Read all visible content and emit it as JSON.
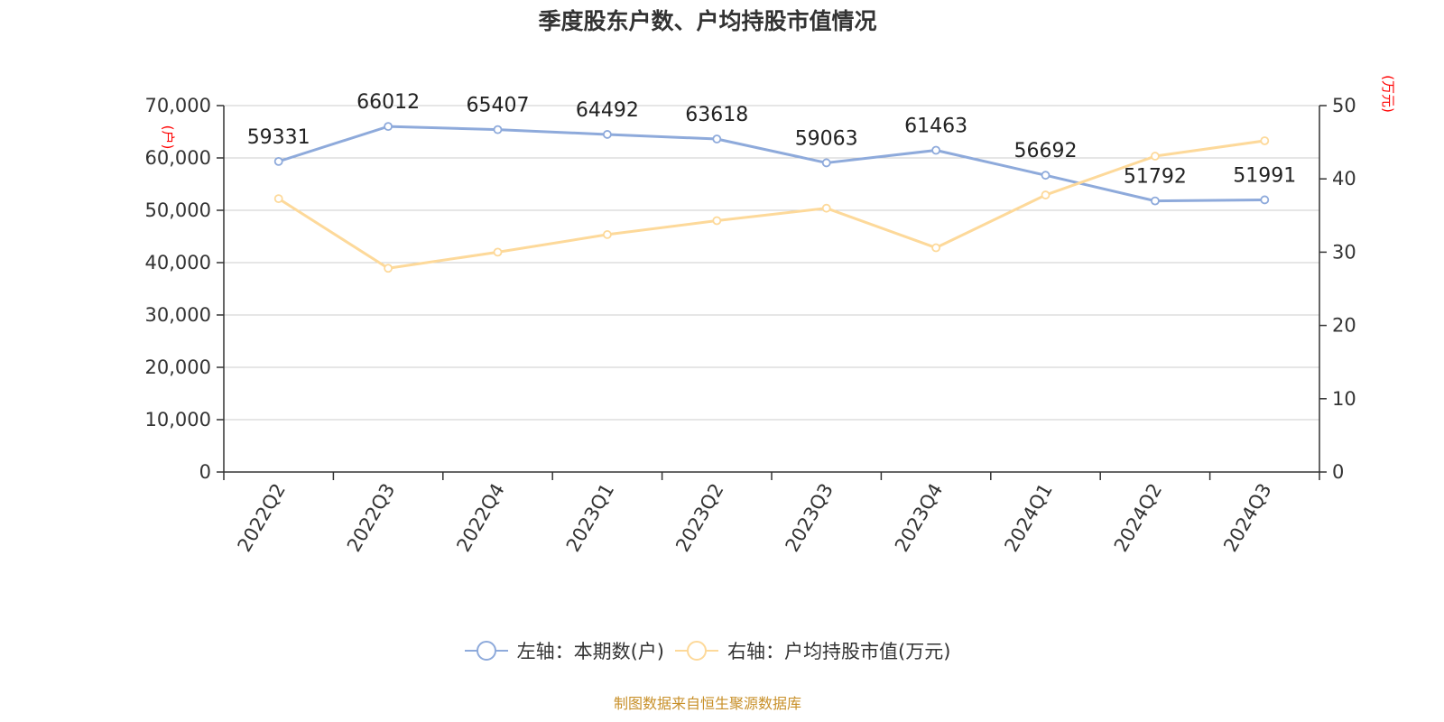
{
  "chart_data": {
    "type": "line",
    "title": "季度股东户数、户均持股市值情况",
    "categories": [
      "2022Q2",
      "2022Q3",
      "2022Q4",
      "2023Q1",
      "2023Q2",
      "2023Q3",
      "2023Q4",
      "2024Q1",
      "2024Q2",
      "2024Q3"
    ],
    "series": [
      {
        "name": "左轴：本期数(户)",
        "axis": "left",
        "color": "#8eaadb",
        "values": [
          59331,
          66012,
          65407,
          64492,
          63618,
          59063,
          61463,
          56692,
          51792,
          51991
        ],
        "labels": [
          "59331",
          "66012",
          "65407",
          "64492",
          "63618",
          "59063",
          "61463",
          "56692",
          "51792",
          "51991"
        ]
      },
      {
        "name": "右轴：户均持股市值(万元)",
        "axis": "right",
        "color": "#fdd99a",
        "values": [
          37.3,
          27.8,
          30.0,
          32.4,
          34.3,
          36.0,
          30.6,
          37.8,
          43.1,
          45.2
        ]
      }
    ],
    "left_axis": {
      "unit": "(户)",
      "ylim": [
        0,
        70000
      ],
      "ticks": [
        0,
        10000,
        20000,
        30000,
        40000,
        50000,
        60000,
        70000
      ],
      "tick_labels": [
        "0",
        "10,000",
        "20,000",
        "30,000",
        "40,000",
        "50,000",
        "60,000",
        "70,000"
      ]
    },
    "right_axis": {
      "unit": "(万元)",
      "ylim": [
        0,
        50
      ],
      "ticks": [
        0,
        10,
        20,
        30,
        40,
        50
      ],
      "tick_labels": [
        "0",
        "10",
        "20",
        "30",
        "40",
        "50"
      ]
    },
    "grid": true,
    "legend_position": "bottom-center",
    "source_note": "制图数据来自恒生聚源数据库",
    "colors": {
      "axis_line": "#333333",
      "grid": "#cccccc",
      "unit_label": "#ff0000",
      "source_note": "#c8902a"
    }
  }
}
